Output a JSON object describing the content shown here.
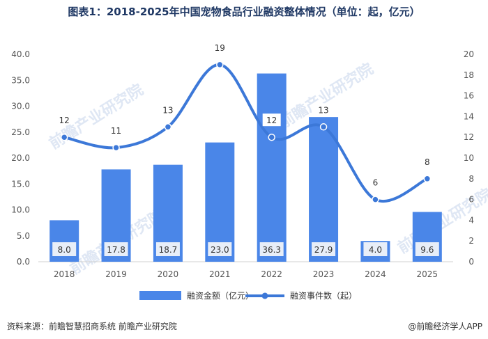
{
  "title": "图表1：2018-2025年中国宠物食品行业融资整体情况（单位：起，亿元）",
  "watermark": "前瞻产业研究院",
  "colors": {
    "bar": "#4a86e8",
    "line": "#3c78d8",
    "label_box": "#e8eef8",
    "axis_text": "#555555"
  },
  "chart_data": {
    "type": "bar",
    "categories": [
      "2018",
      "2019",
      "2020",
      "2021",
      "2022",
      "2023",
      "2024",
      "2025"
    ],
    "series": [
      {
        "name": "融资金额（亿元）",
        "type": "bar",
        "axis": "left",
        "values": [
          8.0,
          17.8,
          18.7,
          23.0,
          36.3,
          27.9,
          4.0,
          9.6
        ]
      },
      {
        "name": "融资事件数（起）",
        "type": "line",
        "axis": "right",
        "values": [
          12,
          11,
          13,
          19,
          12,
          13,
          6,
          8
        ]
      }
    ],
    "bar_labels": [
      "8.0",
      "17.8",
      "18.7",
      "23.0",
      "36.3",
      "27.9",
      "4.0",
      "9.6"
    ],
    "line_labels": [
      "12",
      "11",
      "13",
      "19",
      "12",
      "13",
      "6",
      "8"
    ],
    "y_left": {
      "ylim": [
        0,
        40
      ],
      "ticks": [
        "0.0",
        "5.0",
        "10.0",
        "15.0",
        "20.0",
        "25.0",
        "30.0",
        "35.0",
        "40.0"
      ]
    },
    "y_right": {
      "ylim": [
        0,
        20
      ],
      "ticks": [
        "0",
        "2",
        "4",
        "6",
        "8",
        "10",
        "12",
        "14",
        "16",
        "18",
        "20"
      ]
    },
    "legend_position": "bottom-center",
    "grid": false
  },
  "source": "资料来源：前瞻智慧招商系统  前瞻产业研究院",
  "brand": "@前瞻经济学人APP"
}
